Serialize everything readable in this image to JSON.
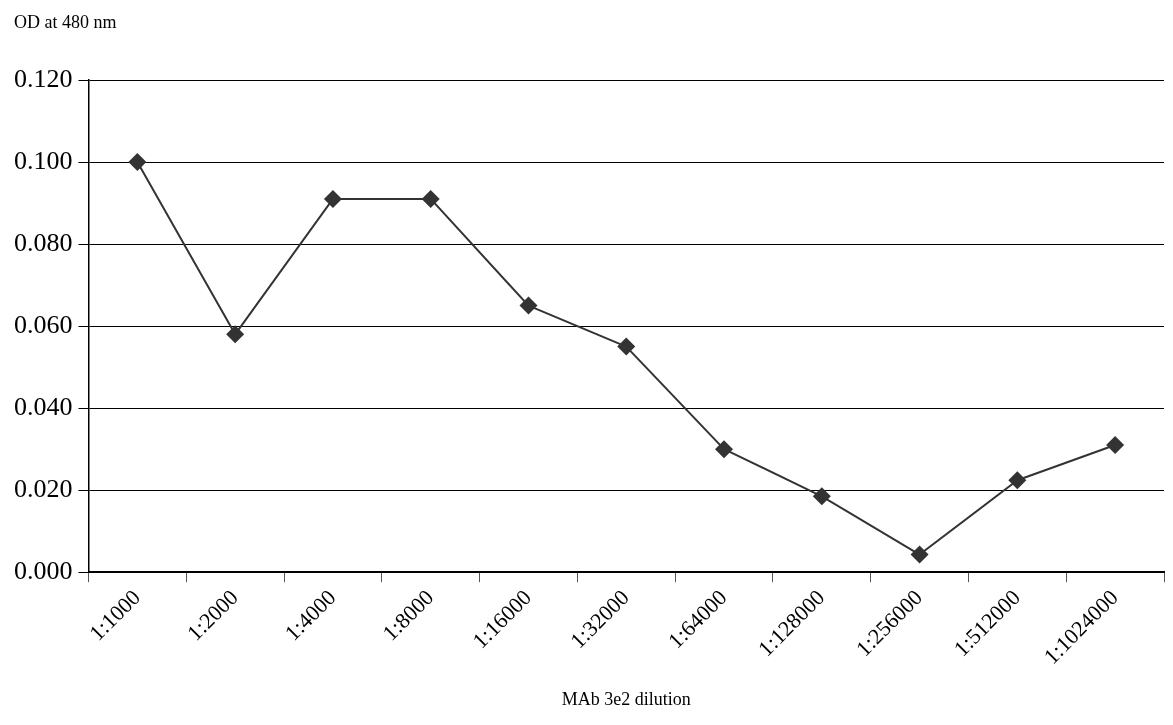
{
  "chart_data": {
    "type": "line",
    "xlabel": "MAb 3e2 dilution",
    "ylabel": "OD at 480 nm",
    "categories": [
      "1:1000",
      "1:2000",
      "1:4000",
      "1:8000",
      "1:16000",
      "1:32000",
      "1:64000",
      "1:128000",
      "1:256000",
      "1:512000",
      "1:1024000"
    ],
    "series": [
      {
        "color": "#333333",
        "values": [
          0.1,
          0.058,
          0.091,
          0.091,
          0.065,
          0.055,
          0.03,
          0.0185,
          0.0043,
          0.0224,
          0.031
        ]
      }
    ],
    "ylim": [
      0,
      0.12
    ],
    "yticks": [
      {
        "value": 0,
        "label": "0.000"
      },
      {
        "value": 0.02,
        "label": "0.020"
      },
      {
        "value": 0.04,
        "label": "0.040"
      },
      {
        "value": 0.06,
        "label": "0.060"
      },
      {
        "value": 0.08,
        "label": "0.080"
      },
      {
        "value": 0.1,
        "label": "0.100"
      },
      {
        "value": 0.12,
        "label": "0.120"
      }
    ],
    "grid": "y",
    "legend": false,
    "marker": "diamond",
    "line_style": "solid"
  }
}
